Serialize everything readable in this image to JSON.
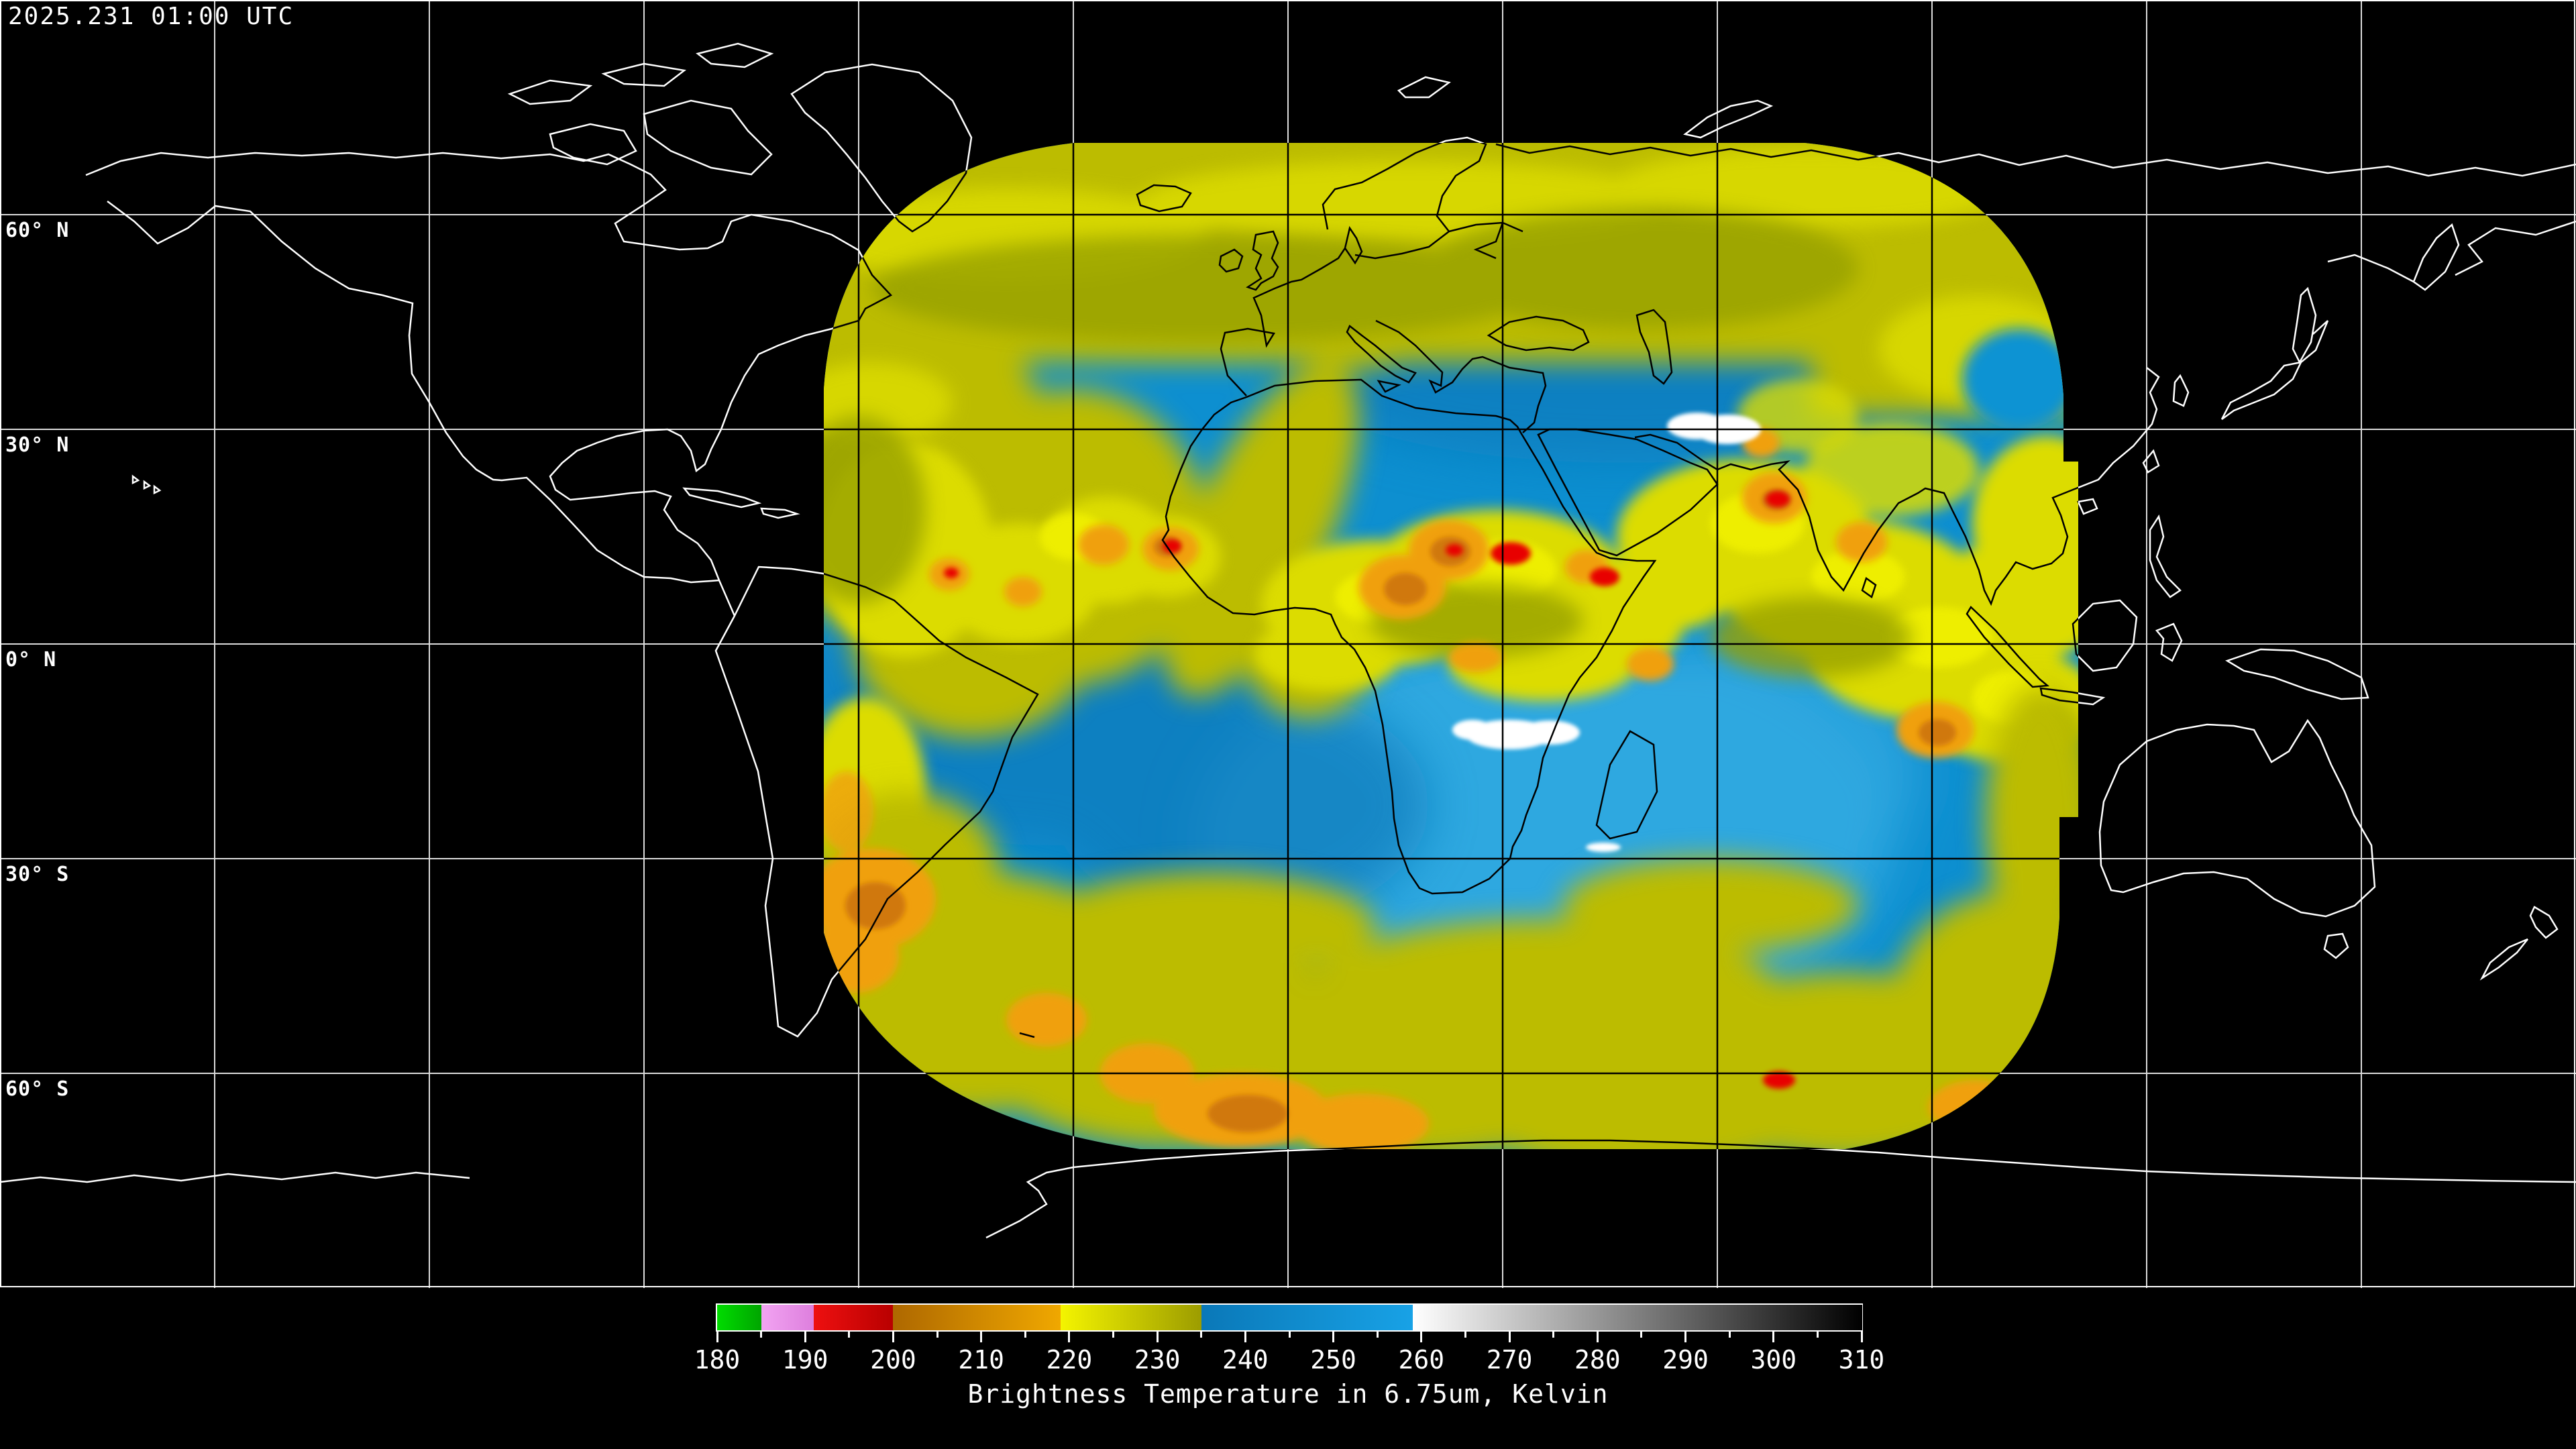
{
  "header": {
    "timestamp": "2025.231 01:00 UTC"
  },
  "map": {
    "lat_labels": [
      "60° N",
      "30° N",
      "0° N",
      "30° S",
      "60° S"
    ],
    "grid_interval_degrees": 30
  },
  "colorbar": {
    "min_k": 180,
    "max_k": 310,
    "tick_values": [
      180,
      190,
      200,
      210,
      220,
      230,
      240,
      250,
      260,
      270,
      280,
      290,
      300,
      310
    ],
    "minor_tick_values": [
      185,
      195,
      205,
      215,
      225,
      235,
      245,
      255,
      265,
      275,
      285,
      295,
      305
    ],
    "caption": "Brightness Temperature in 6.75um, Kelvin",
    "segments": [
      {
        "name": "green",
        "from_k": 180,
        "to_k": 185,
        "color_start": "#00DC00",
        "color_end": "#00A400"
      },
      {
        "name": "violet",
        "from_k": 185,
        "to_k": 191,
        "color_start": "#F2A4F2",
        "color_end": "#DD7EDD"
      },
      {
        "name": "red",
        "from_k": 191,
        "to_k": 200,
        "color_start": "#EE1010",
        "color_end": "#B80000"
      },
      {
        "name": "orange",
        "from_k": 200,
        "to_k": 219,
        "color_start": "#AE6800",
        "color_end": "#F0A800"
      },
      {
        "name": "yellow",
        "from_k": 219,
        "to_k": 235,
        "color_start": "#F4F400",
        "color_end": "#9C9C00"
      },
      {
        "name": "blue",
        "from_k": 235,
        "to_k": 259,
        "color_start": "#0A78B8",
        "color_end": "#18A2E6"
      },
      {
        "name": "gray",
        "from_k": 259,
        "to_k": 310,
        "color_start": "#FFFFFF",
        "color_end": "#000000"
      }
    ]
  },
  "palette": {
    "background": "#000000",
    "border": "#FFFFFF",
    "grid_outside": "#E8E8E8",
    "grid_inside": "#000000",
    "coast_outside": "#FFFFFF",
    "coast_inside": "#000000",
    "data_blue": "#0D8FD0",
    "data_blue_light": "#2FA8E0",
    "data_blue_dark": "#0B7ABB",
    "data_blue_spot": "#1193D3",
    "data_yellow": "#BCBC00",
    "data_yellow_bright": "#DCDC00",
    "data_yellow_vivid": "#F0F000",
    "data_olive": "#96A000",
    "data_orange": "#F0A010",
    "data_orange_deep": "#D07808",
    "data_red": "#E80000",
    "data_white": "#FFFFFF"
  }
}
